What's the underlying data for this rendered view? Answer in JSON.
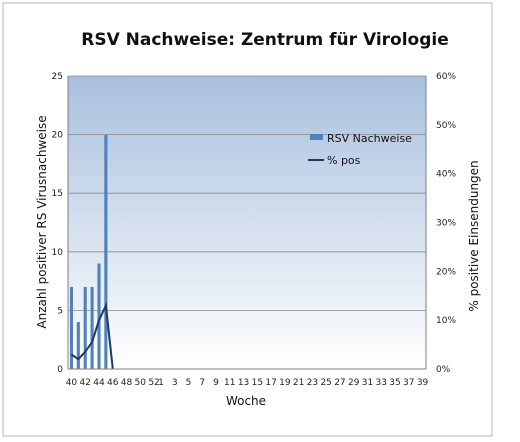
{
  "chart_data": {
    "type": "bar",
    "title": "RSV Nachweise: Zentrum für Virologie",
    "xlabel": "Woche",
    "ylabel": "Anzahl positiver RS Virusnachweise",
    "y2label": "% positive Einsendungen",
    "ylim": [
      0,
      25
    ],
    "y2lim": [
      0,
      0.6
    ],
    "yticks": [
      "0",
      "5",
      "10",
      "15",
      "20",
      "25"
    ],
    "y2ticks": [
      "0%",
      "10%",
      "20%",
      "30%",
      "40%",
      "50%",
      "60%"
    ],
    "grid": true,
    "legend_position": "right",
    "categories": [
      "40",
      "41",
      "42",
      "43",
      "44",
      "45",
      "46",
      "47",
      "48",
      "49",
      "50",
      "51",
      "52",
      "1",
      "2",
      "3",
      "4",
      "5",
      "6",
      "7",
      "8",
      "9",
      "10",
      "11",
      "12",
      "13",
      "14",
      "15",
      "16",
      "17",
      "18",
      "19",
      "20",
      "21",
      "22",
      "23",
      "24",
      "25",
      "26",
      "27",
      "28",
      "29",
      "30",
      "31",
      "32",
      "33",
      "34",
      "35",
      "36",
      "37",
      "38",
      "39"
    ],
    "tick_labels": [
      "40",
      "42",
      "44",
      "46",
      "48",
      "50",
      "52",
      "1",
      "3",
      "5",
      "7",
      "9",
      "11",
      "13",
      "15",
      "17",
      "19",
      "21",
      "23",
      "25",
      "27",
      "29",
      "31",
      "33",
      "35",
      "37",
      "39"
    ],
    "series": [
      {
        "name": "RSV Nachweise",
        "kind": "bar",
        "axis": "left",
        "color": "#4f81bd",
        "values": [
          7,
          4,
          7,
          7,
          9,
          20,
          0,
          0,
          0,
          0,
          0,
          0,
          0,
          0,
          0,
          0,
          0,
          0,
          0,
          0,
          0,
          0,
          0,
          0,
          0,
          0,
          0,
          0,
          0,
          0,
          0,
          0,
          0,
          0,
          0,
          0,
          0,
          0,
          0,
          0,
          0,
          0,
          0,
          0,
          0,
          0,
          0,
          0,
          0,
          0,
          0,
          0
        ]
      },
      {
        "name": "% pos",
        "kind": "line",
        "axis": "right",
        "color": "#1f3864",
        "values": [
          0.03,
          0.02,
          0.035,
          0.055,
          0.1,
          0.13,
          0,
          0,
          0,
          0,
          0,
          0,
          0,
          0,
          0,
          0,
          0,
          0,
          0,
          0,
          0,
          0,
          0,
          0,
          0,
          0,
          0,
          0,
          0,
          0,
          0,
          0,
          0,
          0,
          0,
          0,
          0,
          0,
          0,
          0,
          0,
          0,
          0,
          0,
          0,
          0,
          0,
          0,
          0,
          0,
          0,
          0
        ]
      }
    ]
  }
}
